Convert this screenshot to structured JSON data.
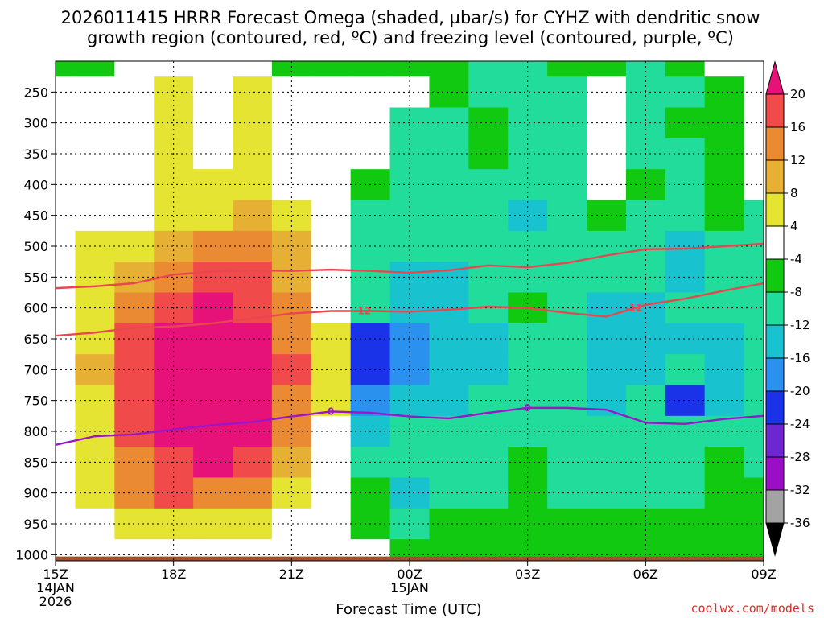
{
  "chart_data": {
    "type": "heatmap",
    "title_line1": "2026011415 HRRR Forecast Omega (shaded, µbar/s) for CYHZ with dendritic snow",
    "title_line2": "growth region (contoured, red, ºC) and freezing level (contoured, purple, ºC)",
    "xlabel": "Forecast Time (UTC)",
    "credit": "coolwx.com/models",
    "x_hours": [
      0,
      1,
      2,
      3,
      4,
      5,
      6,
      7,
      8,
      9,
      10,
      11,
      12,
      13,
      14,
      15,
      16,
      17,
      18
    ],
    "x_ticks": [
      {
        "hour": 0,
        "label": "15Z",
        "sub1": "14JAN",
        "sub2": "2026"
      },
      {
        "hour": 3,
        "label": "18Z",
        "sub1": "",
        "sub2": ""
      },
      {
        "hour": 6,
        "label": "21Z",
        "sub1": "",
        "sub2": ""
      },
      {
        "hour": 9,
        "label": "00Z",
        "sub1": "15JAN",
        "sub2": ""
      },
      {
        "hour": 12,
        "label": "03Z",
        "sub1": "",
        "sub2": ""
      },
      {
        "hour": 15,
        "label": "06Z",
        "sub1": "",
        "sub2": ""
      },
      {
        "hour": 18,
        "label": "09Z",
        "sub1": "",
        "sub2": ""
      }
    ],
    "y_levels": [
      200,
      250,
      300,
      350,
      400,
      450,
      500,
      550,
      600,
      650,
      700,
      750,
      800,
      850,
      900,
      950,
      1000
    ],
    "y_tick_labels": [
      "250",
      "300",
      "350",
      "400",
      "450",
      "500",
      "550",
      "600",
      "650",
      "700",
      "750",
      "800",
      "850",
      "900",
      "950",
      "1000"
    ],
    "ylim": [
      200,
      1010
    ],
    "omega_ubar_s": [
      [
        -6,
        -6,
        -4,
        -4,
        -4,
        -4,
        -5,
        -6,
        -7,
        -7,
        -7,
        -10,
        -9,
        -6,
        -7,
        -9,
        -5,
        -4,
        -4
      ],
      [
        -1,
        -1,
        -1,
        5,
        0,
        6,
        -1,
        -2,
        -3,
        -4,
        -7,
        -9,
        -9,
        -10,
        -4,
        -10,
        -9,
        -5,
        -4
      ],
      [
        -1,
        -1,
        -1,
        5,
        -1,
        6,
        -1,
        -1,
        -3,
        -9,
        -9,
        -8,
        -9,
        -9,
        -4,
        -11,
        -8,
        -6,
        -4
      ],
      [
        -1,
        -1,
        0,
        7,
        3,
        6,
        0,
        -1,
        -2,
        -9,
        -9,
        -7,
        -10,
        -9,
        -4,
        -10,
        -12,
        -6,
        -4
      ],
      [
        -1,
        0,
        0,
        6,
        5,
        7,
        2,
        -1,
        -7,
        -9,
        -10,
        -9,
        -11,
        -10,
        -4,
        -7,
        -12,
        -7,
        -4
      ],
      [
        -1,
        0,
        3,
        7,
        7,
        10,
        5,
        -1,
        -9,
        -10,
        -9,
        -11,
        -13,
        -10,
        -8,
        -9,
        -12,
        -8,
        -12
      ],
      [
        -1,
        5,
        5,
        11,
        14,
        15,
        8,
        1,
        -9,
        -11,
        -12,
        -11,
        -11,
        -12,
        -9,
        -11,
        -13,
        -9,
        -12
      ],
      [
        -1,
        6,
        8,
        15,
        18,
        16,
        11,
        2,
        -10,
        -13,
        -13,
        -12,
        -11,
        -12,
        -12,
        -12,
        -13,
        -12,
        -12
      ],
      [
        -1,
        6,
        12,
        17,
        22,
        19,
        13,
        3,
        -12,
        -15,
        -15,
        -12,
        -8,
        -11,
        -13,
        -13,
        -12,
        -12,
        -12
      ],
      [
        -1,
        7,
        18,
        23,
        23,
        21,
        14,
        4,
        -22,
        -17,
        -16,
        -14,
        -9,
        -11,
        -13,
        -14,
        -13,
        -13,
        -12
      ],
      [
        -1,
        8,
        18,
        22,
        25,
        23,
        16,
        4,
        -21,
        -17,
        -13,
        -13,
        -9,
        -12,
        -14,
        -14,
        -11,
        -13,
        -12
      ],
      [
        -1,
        7,
        18,
        22,
        24,
        22,
        14,
        4,
        -17,
        -14,
        -13,
        -11,
        -9,
        -12,
        -14,
        -12,
        -22,
        -13,
        -12
      ],
      [
        -1,
        6,
        16,
        22,
        24,
        22,
        12,
        3,
        -14,
        -11,
        -12,
        -12,
        -9,
        -10,
        -12,
        -12,
        -10,
        -12,
        -12
      ],
      [
        -1,
        6,
        14,
        19,
        21,
        18,
        10,
        3,
        -10,
        -12,
        -11,
        -12,
        -8,
        -12,
        -10,
        -12,
        -10,
        -6,
        -12
      ],
      [
        -1,
        5,
        12,
        16,
        15,
        13,
        7,
        2,
        -6,
        -16,
        -11,
        -11,
        -7,
        -11,
        -9,
        -11,
        -10,
        -6,
        -8
      ],
      [
        -1,
        3,
        5,
        7,
        6,
        5,
        3,
        1,
        -5,
        -10,
        -8,
        -8,
        -6,
        -8,
        -7,
        -8,
        -7,
        -6,
        -6
      ],
      [
        -1,
        -1,
        0,
        0,
        -1,
        -1,
        -1,
        -1,
        -1,
        -5,
        -5,
        -5,
        -5,
        -5,
        -5,
        -5,
        -5,
        -5,
        -5
      ]
    ],
    "colorbar": {
      "levels": [
        -36,
        -32,
        -28,
        -24,
        -20,
        -16,
        -12,
        -8,
        -4,
        4,
        8,
        12,
        16,
        20
      ],
      "tick_labels": [
        "-36",
        "-32",
        "-28",
        "-24",
        "-20",
        "-16",
        "-12",
        "-8",
        "-4",
        "4",
        "8",
        "12",
        "16",
        "20"
      ],
      "colors": [
        "#000000",
        "#a3a3a3",
        "#9a0ec5",
        "#6e27cf",
        "#1a32e8",
        "#2a91ee",
        "#18c3cf",
        "#21dc9a",
        "#12c912",
        "#ffffff",
        "#e5e432",
        "#e6b034",
        "#ea8a32",
        "#f04a4b",
        "#e6127a"
      ]
    },
    "contours": [
      {
        "name": "dgz-minus12-line",
        "label": "-12",
        "color": "#e8474f",
        "label_at_hours": [
          7.8,
          14.7
        ],
        "x": [
          0,
          1,
          2,
          3,
          4,
          5,
          6,
          7,
          8,
          9,
          10,
          11,
          12,
          13,
          14,
          15,
          16,
          17,
          18
        ],
        "y": [
          645,
          640,
          632,
          630,
          625,
          617,
          609,
          605,
          605,
          606,
          603,
          598,
          600,
          608,
          614,
          595,
          585,
          572,
          560
        ]
      },
      {
        "name": "dgz-upper-line",
        "label": "",
        "color": "#e8474f",
        "label_at_hours": [],
        "x": [
          0,
          1,
          2,
          3,
          4,
          5,
          6,
          7,
          8,
          9,
          10,
          11,
          12,
          13,
          14,
          15,
          16,
          17,
          18
        ],
        "y": [
          568,
          565,
          560,
          546,
          541,
          539,
          540,
          538,
          540,
          543,
          539,
          531,
          534,
          527,
          515,
          505,
          504,
          500,
          496
        ]
      },
      {
        "name": "freezing-level-line",
        "label": "0",
        "color": "#9a16c8",
        "label_at_hours": [
          7,
          12
        ],
        "x": [
          0,
          1,
          2,
          3,
          4,
          5,
          6,
          7,
          8,
          9,
          10,
          11,
          12,
          13,
          14,
          15,
          16,
          17,
          18
        ],
        "y": [
          822,
          808,
          805,
          797,
          790,
          785,
          776,
          768,
          770,
          776,
          779,
          770,
          762,
          762,
          765,
          786,
          788,
          780,
          775
        ]
      }
    ]
  }
}
